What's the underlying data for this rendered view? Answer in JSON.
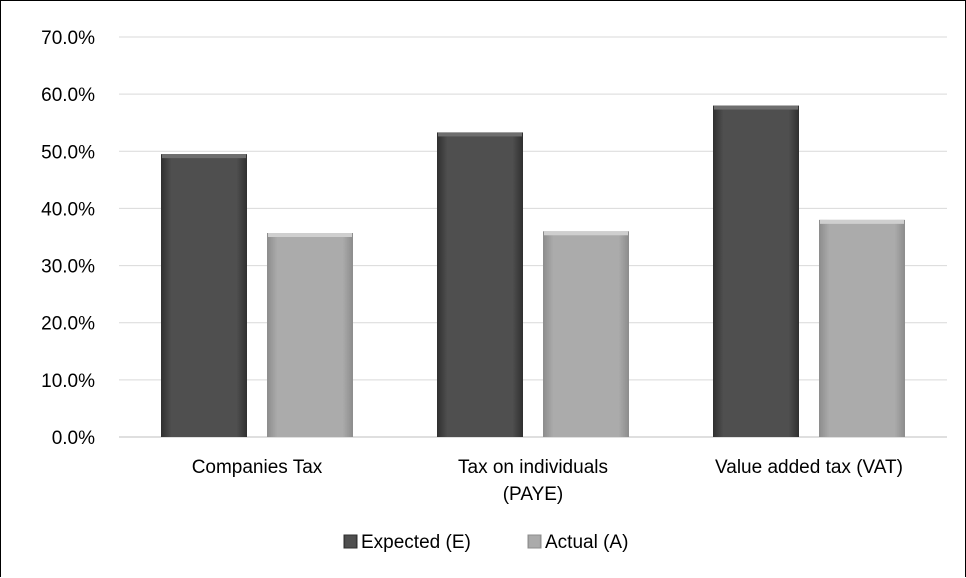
{
  "chart_data": {
    "type": "bar",
    "categories": [
      [
        "Companies Tax"
      ],
      [
        "Tax on individuals",
        "(PAYE)"
      ],
      [
        "Value added tax (VAT)"
      ]
    ],
    "series": [
      {
        "name": "Expected (E)",
        "values": [
          49.5,
          53.3,
          58.0
        ],
        "color": "#4d4d4d"
      },
      {
        "name": "Actual (A)",
        "values": [
          35.7,
          36.0,
          38.0
        ],
        "color": "#a6a6a6"
      }
    ],
    "y_ticks": [
      "0.0%",
      "10.0%",
      "20.0%",
      "30.0%",
      "40.0%",
      "50.0%",
      "60.0%",
      "70.0%"
    ],
    "ylim": [
      0,
      70
    ],
    "grid": true,
    "legend_position": "bottom",
    "title": "",
    "xlabel": "",
    "ylabel": ""
  }
}
